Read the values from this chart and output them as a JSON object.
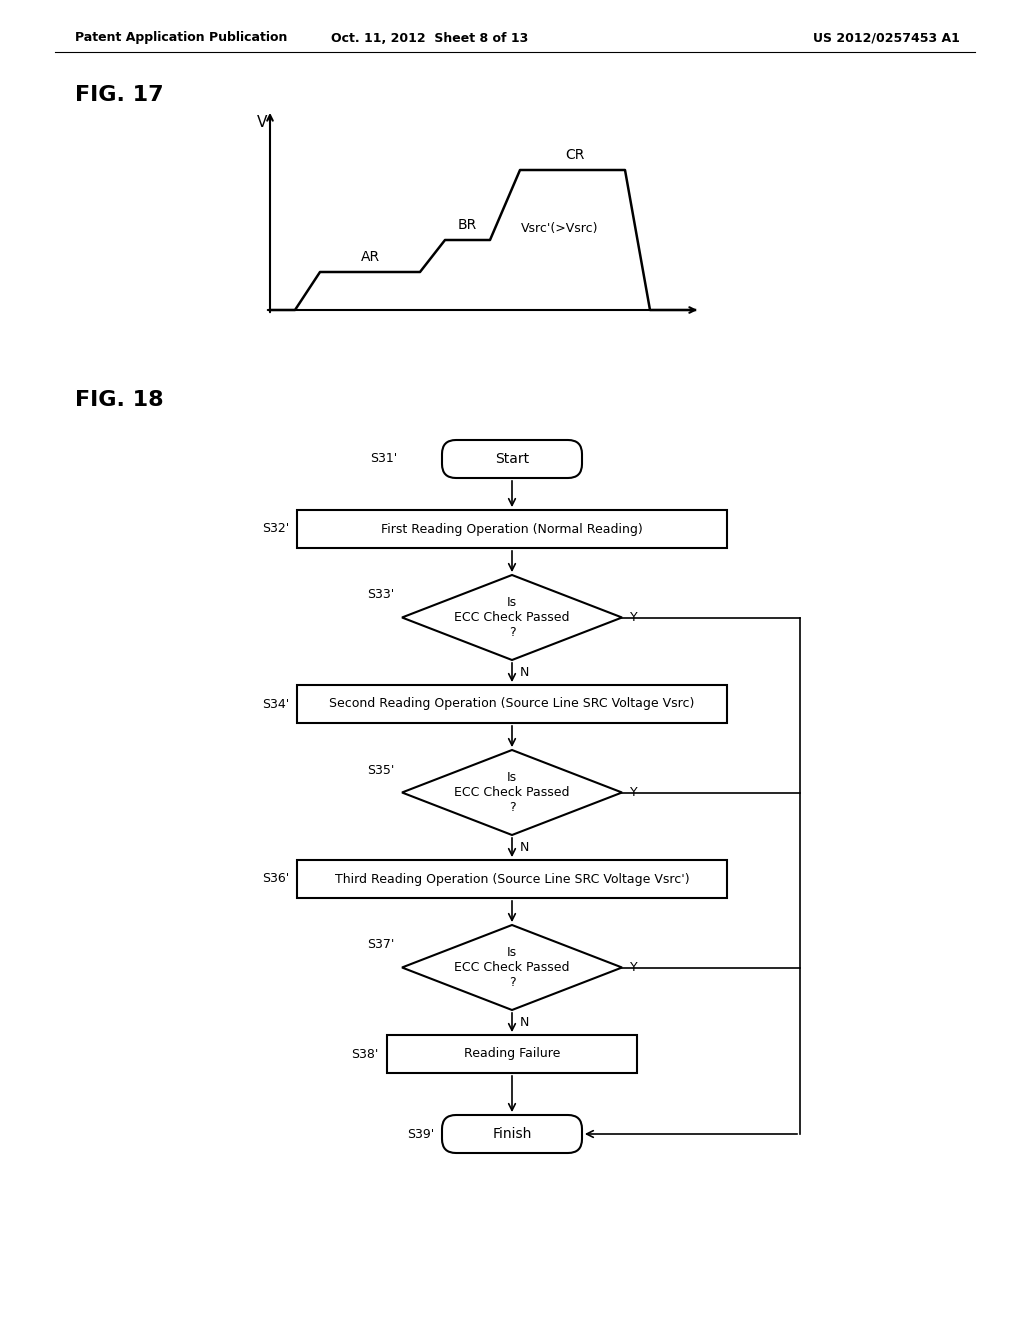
{
  "bg_color": "#ffffff",
  "header_left": "Patent Application Publication",
  "header_center": "Oct. 11, 2012  Sheet 8 of 13",
  "header_right": "US 2012/0257453 A1",
  "fig17_label": "FIG. 17",
  "fig18_label": "FIG. 18",
  "waveform_y_label": "V",
  "waveform_ar_label": "AR",
  "waveform_br_label": "BR",
  "waveform_cr_label": "CR",
  "waveform_vsrc_label": "Vsrc'(>Vsrc)",
  "nodes": [
    {
      "id": "S31",
      "label": "S31'",
      "text": "Start",
      "shape": "rounded"
    },
    {
      "id": "S32",
      "label": "S32'",
      "text": "First Reading Operation (Normal Reading)",
      "shape": "rect"
    },
    {
      "id": "S33",
      "label": "S33'",
      "text": "Is\nECC Check Passed\n?",
      "shape": "diamond"
    },
    {
      "id": "S34",
      "label": "S34'",
      "text": "Second Reading Operation (Source Line SRC Voltage Vsrc)",
      "shape": "rect"
    },
    {
      "id": "S35",
      "label": "S35'",
      "text": "Is\nECC Check Passed\n?",
      "shape": "diamond"
    },
    {
      "id": "S36",
      "label": "S36'",
      "text": "Third Reading Operation (Source Line SRC Voltage Vsrc')",
      "shape": "rect"
    },
    {
      "id": "S37",
      "label": "S37'",
      "text": "Is\nECC Check Passed\n?",
      "shape": "diamond"
    },
    {
      "id": "S38",
      "label": "S38'",
      "text": "Reading Failure",
      "shape": "rect"
    },
    {
      "id": "S39",
      "label": "S39'",
      "text": "Finish",
      "shape": "rounded"
    }
  ]
}
